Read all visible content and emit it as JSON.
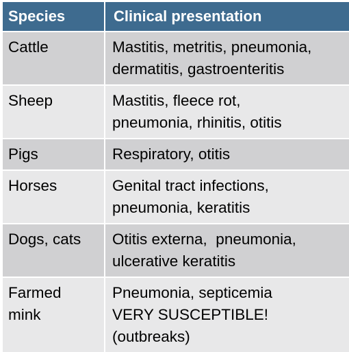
{
  "table": {
    "headers": [
      "Species",
      "Clinical presentation"
    ],
    "rows": [
      {
        "species": "Cattle",
        "presentation": [
          "Mastitis, metritis, pneumonia,",
          "dermatitis, gastroenteritis"
        ]
      },
      {
        "species": "Sheep",
        "presentation": [
          "Mastitis, fleece rot,",
          "pneumonia, rhinitis, otitis"
        ]
      },
      {
        "species": "Pigs",
        "presentation": [
          "Respiratory, otitis"
        ]
      },
      {
        "species": "Horses",
        "presentation": [
          "Genital tract infections,",
          "pneumonia, keratitis"
        ]
      },
      {
        "species": "Dogs, cats",
        "presentation": [
          "Otitis externa,  pneumonia,",
          "ulcerative keratitis"
        ]
      },
      {
        "species": "Farmed mink",
        "species_lines": [
          "Farmed",
          "mink"
        ],
        "presentation": [
          "Pneumonia, septicemia",
          "VERY SUSCEPTIBLE!",
          "(outbreaks)"
        ]
      }
    ]
  }
}
